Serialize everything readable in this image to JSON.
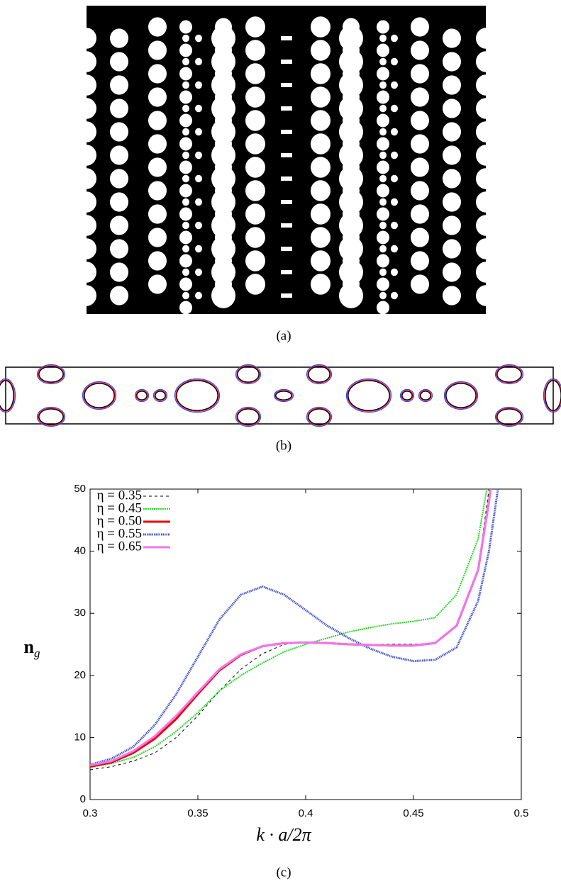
{
  "panels": [
    {
      "caption": "(a)"
    },
    {
      "caption": "(b)"
    },
    {
      "caption": "(c)"
    }
  ],
  "chart_data": {
    "type": "line",
    "xlabel": "k · a/2π",
    "ylabel": "n",
    "ylabel_subscript": "g",
    "x": [
      0.3,
      0.31,
      0.32,
      0.33,
      0.34,
      0.35,
      0.36,
      0.37,
      0.38,
      0.39,
      0.4,
      0.41,
      0.42,
      0.43,
      0.44,
      0.45,
      0.46,
      0.47,
      0.48,
      0.485,
      0.49
    ],
    "series": [
      {
        "name": "η = 0.35",
        "color": "#000000",
        "values": [
          4.8,
          5.3,
          6.2,
          7.5,
          10,
          13.5,
          17.5,
          21,
          23.5,
          25,
          25.3,
          25.2,
          25,
          25,
          25,
          25,
          25.2,
          28,
          37,
          50,
          65
        ]
      },
      {
        "name": "η = 0.45",
        "color": "#22dd22",
        "values": [
          5.2,
          5.8,
          6.8,
          8.5,
          11,
          14,
          17.5,
          20,
          22,
          23.8,
          25,
          26,
          27,
          27.7,
          28.3,
          28.7,
          29.3,
          33,
          42,
          52,
          66
        ]
      },
      {
        "name": "η = 0.50",
        "color": "#ee0000",
        "values": [
          5.3,
          6,
          7.5,
          9.8,
          13,
          17,
          20.8,
          23.3,
          24.7,
          25.2,
          25.3,
          25.2,
          25,
          24.9,
          24.8,
          24.8,
          25.2,
          28,
          37,
          48,
          62
        ]
      },
      {
        "name": "η = 0.55",
        "color": "#4455cc",
        "values": [
          5.6,
          6.6,
          8.5,
          12,
          17,
          23,
          29,
          33,
          34.3,
          33,
          30.5,
          28,
          26,
          24.3,
          23,
          22.3,
          22.5,
          24.5,
          32,
          40,
          52
        ]
      },
      {
        "name": "η = 0.65",
        "color": "#ee77ee",
        "values": [
          5.5,
          6.2,
          7.8,
          10.2,
          13.5,
          17.3,
          21,
          23.4,
          24.7,
          25.2,
          25.3,
          25.2,
          25,
          24.9,
          24.8,
          24.8,
          25.2,
          28,
          37,
          48,
          62
        ]
      }
    ],
    "xlim": [
      0.3,
      0.5
    ],
    "xticks": [
      0.3,
      0.35,
      0.4,
      0.45,
      0.5
    ],
    "ylim": [
      0,
      50
    ],
    "yticks": [
      0,
      10,
      20,
      30,
      40,
      50
    ],
    "legend": "upper-left",
    "grid": false
  }
}
